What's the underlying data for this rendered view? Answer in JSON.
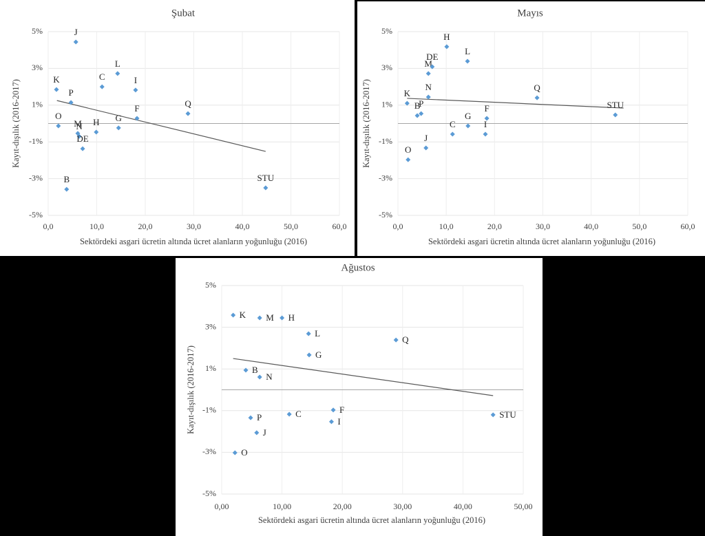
{
  "chart_data": [
    {
      "type": "scatter",
      "title": "Şubat",
      "xlabel": "Sektördeki asgari ücretin altında ücret alanların yoğunluğu (2016)",
      "ylabel": "Kayıt-dışılık (2016-2017)",
      "xlim": [
        0,
        60
      ],
      "xticks": [
        {
          "value": 0,
          "label": "0,0"
        },
        {
          "value": 10,
          "label": "10,0"
        },
        {
          "value": 20,
          "label": "20,0"
        },
        {
          "value": 30,
          "label": "30,0"
        },
        {
          "value": 40,
          "label": "40,0"
        },
        {
          "value": 50,
          "label": "50,0"
        },
        {
          "value": 60,
          "label": "60,0"
        }
      ],
      "ylim": [
        -5,
        5
      ],
      "yticks": [
        {
          "value": -5,
          "label": "-5%"
        },
        {
          "value": -3,
          "label": "-3%"
        },
        {
          "value": -1,
          "label": "-1%"
        },
        {
          "value": 1,
          "label": "1%"
        },
        {
          "value": 3,
          "label": "3%"
        },
        {
          "value": 5,
          "label": "5%"
        }
      ],
      "grid": true,
      "series": [
        {
          "color": "#5b9bd5",
          "labels": [
            "K",
            "J",
            "P",
            "C",
            "L",
            "I",
            "O",
            "M",
            "N",
            "DE",
            "H",
            "G",
            "F",
            "Q",
            "B",
            "STU"
          ],
          "x": [
            1.7,
            5.7,
            4.7,
            11.1,
            14.3,
            18.0,
            2.1,
            6.1,
            6.4,
            7.1,
            9.9,
            14.5,
            18.3,
            28.8,
            3.8,
            44.8
          ],
          "values": [
            1.85,
            4.44,
            1.14,
            2.0,
            2.72,
            1.82,
            -0.13,
            -0.54,
            -0.7,
            -1.37,
            -0.47,
            -0.24,
            0.28,
            0.54,
            -3.58,
            -3.5
          ]
        }
      ],
      "trendline": {
        "color": "#595959",
        "x": [
          1.8,
          44.8
        ],
        "values": [
          1.25,
          -1.52
        ]
      }
    },
    {
      "type": "scatter",
      "title": "Mayıs",
      "xlabel": "Sektördeki asgari ücretin altında ücret alanların yoğunluğu (2016)",
      "ylabel": "Kayıt-dışılık (2016-2017)",
      "xlim": [
        0,
        60
      ],
      "xticks": [
        {
          "value": 0,
          "label": "0,0"
        },
        {
          "value": 10,
          "label": "10,0"
        },
        {
          "value": 20,
          "label": "20,0"
        },
        {
          "value": 30,
          "label": "30,0"
        },
        {
          "value": 40,
          "label": "40,0"
        },
        {
          "value": 50,
          "label": "50,0"
        },
        {
          "value": 60,
          "label": "60,0"
        }
      ],
      "ylim": [
        -5,
        5
      ],
      "yticks": [
        {
          "value": -5,
          "label": "-5%"
        },
        {
          "value": -3,
          "label": "-3%"
        },
        {
          "value": -1,
          "label": "-1%"
        },
        {
          "value": 1,
          "label": "1%"
        },
        {
          "value": 3,
          "label": "3%"
        },
        {
          "value": 5,
          "label": "5%"
        }
      ],
      "grid": true,
      "series": [
        {
          "color": "#5b9bd5",
          "labels": [
            "K",
            "B",
            "P",
            "N",
            "M",
            "DE",
            "H",
            "L",
            "C",
            "G",
            "F",
            "I",
            "J",
            "O",
            "Q",
            "STU"
          ],
          "x": [
            1.9,
            4.0,
            4.8,
            6.3,
            6.3,
            7.1,
            10.1,
            14.4,
            11.3,
            14.5,
            18.4,
            18.1,
            5.8,
            2.1,
            28.8,
            45.0
          ],
          "values": [
            1.1,
            0.43,
            0.54,
            1.44,
            2.72,
            3.09,
            4.18,
            3.39,
            -0.58,
            -0.13,
            0.28,
            -0.58,
            -1.33,
            -1.97,
            1.4,
            0.47
          ]
        }
      ],
      "trendline": {
        "color": "#595959",
        "x": [
          1.9,
          46.7
        ],
        "values": [
          1.37,
          0.84
        ]
      }
    },
    {
      "type": "scatter",
      "title": "Ağustos",
      "xlabel": "Sektördeki asgari ücretin altında ücret alanların yoğunluğu (2016)",
      "ylabel": "Kayıt-dışılık (2016-2017)",
      "xlim": [
        0,
        50
      ],
      "xticks": [
        {
          "value": 0,
          "label": "0,00"
        },
        {
          "value": 10,
          "label": "10,00"
        },
        {
          "value": 20,
          "label": "20,00"
        },
        {
          "value": 30,
          "label": "30,00"
        },
        {
          "value": 40,
          "label": "40,00"
        },
        {
          "value": 50,
          "label": "50,00"
        }
      ],
      "ylim": [
        -5,
        5
      ],
      "yticks": [
        {
          "value": -5,
          "label": "-5%"
        },
        {
          "value": -3,
          "label": "-3%"
        },
        {
          "value": -1,
          "label": "-1%"
        },
        {
          "value": 1,
          "label": "1%"
        },
        {
          "value": 3,
          "label": "3%"
        },
        {
          "value": 5,
          "label": "5%"
        }
      ],
      "grid": true,
      "series": [
        {
          "color": "#5b9bd5",
          "labels": [
            "K",
            "M",
            "H",
            "L",
            "Q",
            "G",
            "B",
            "N",
            "F",
            "C",
            "I",
            "STU",
            "P",
            "J",
            "O"
          ],
          "x": [
            1.9,
            6.3,
            10.0,
            14.4,
            28.9,
            14.5,
            4.0,
            6.3,
            18.5,
            11.2,
            18.2,
            45.0,
            4.8,
            5.8,
            2.2
          ],
          "values": [
            3.58,
            3.45,
            3.45,
            2.69,
            2.39,
            1.67,
            0.94,
            0.61,
            -0.97,
            -1.17,
            -1.53,
            -1.2,
            -1.34,
            -2.06,
            -3.02
          ]
        }
      ],
      "trendline": {
        "color": "#595959",
        "x": [
          1.9,
          45.0
        ],
        "values": [
          1.5,
          -0.28
        ]
      }
    }
  ]
}
